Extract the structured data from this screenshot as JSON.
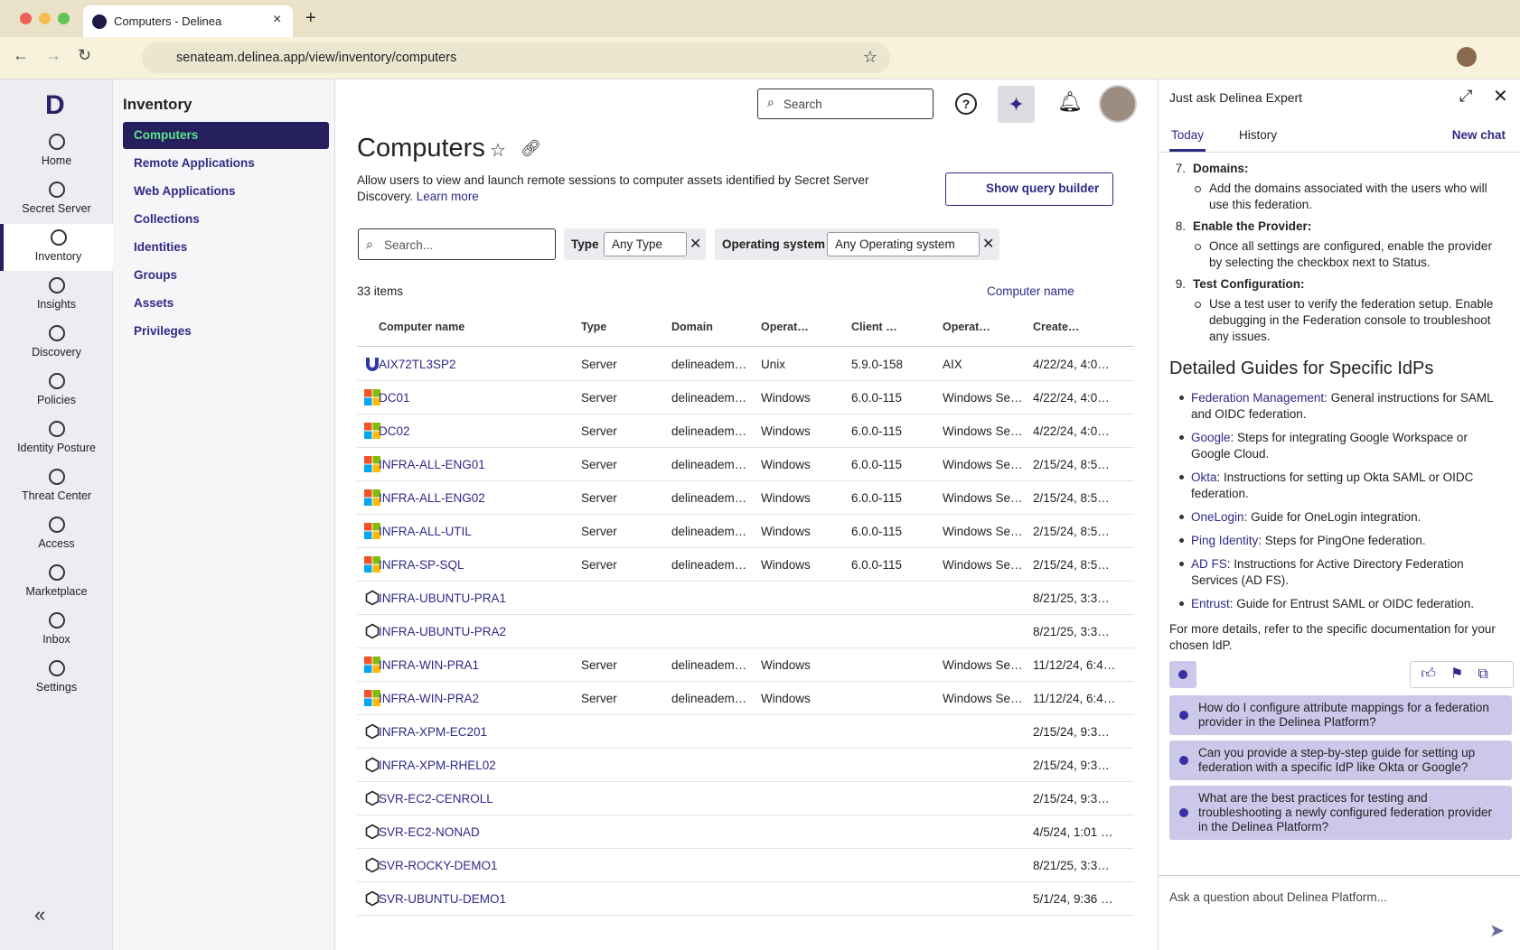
{
  "browser": {
    "tab_title": "Computers - Delinea",
    "url": "senateam.delinea.app/view/inventory/computers"
  },
  "rail": {
    "items": [
      "Home",
      "Secret Server",
      "Inventory",
      "Insights",
      "Discovery",
      "Policies",
      "Identity Posture",
      "Threat Center",
      "Access",
      "Marketplace",
      "Inbox",
      "Settings"
    ],
    "active": 2
  },
  "nav": {
    "title": "Inventory",
    "items": [
      "Computers",
      "Remote Applications",
      "Web Applications",
      "Collections",
      "Identities",
      "Groups",
      "Assets",
      "Privileges"
    ],
    "active": 0
  },
  "header": {
    "search": "Search"
  },
  "page": {
    "title": "Computers",
    "description": "Allow users to view and launch remote sessions to computer assets identified by Secret Server Discovery.",
    "learn_more": "Learn more",
    "query_builder": "Show query builder"
  },
  "filters": {
    "search": "Search...",
    "type_label": "Type",
    "type_value": "Any Type",
    "os_label": "Operating system",
    "os_value": "Any Operating system"
  },
  "table": {
    "count": "33 items",
    "sort": "Computer name",
    "columns": [
      "Computer name",
      "Type",
      "Domain",
      "Operat…",
      "Client …",
      "Operat…",
      "Create…"
    ],
    "rows": [
      [
        "AIX72TL3SP2",
        "Server",
        "delineadem…",
        "Unix",
        "5.9.0-158",
        "AIX",
        "4/22/24, 4:0…"
      ],
      [
        "DC01",
        "Server",
        "delineadem…",
        "Windows",
        "6.0.0-115",
        "Windows Se…",
        "4/22/24, 4:0…"
      ],
      [
        "DC02",
        "Server",
        "delineadem…",
        "Windows",
        "6.0.0-115",
        "Windows Se…",
        "4/22/24, 4:0…"
      ],
      [
        "INFRA-ALL-ENG01",
        "Server",
        "delineadem…",
        "Windows",
        "6.0.0-115",
        "Windows Se…",
        "2/15/24, 8:5…"
      ],
      [
        "INFRA-ALL-ENG02",
        "Server",
        "delineadem…",
        "Windows",
        "6.0.0-115",
        "Windows Se…",
        "2/15/24, 8:5…"
      ],
      [
        "INFRA-ALL-UTIL",
        "Server",
        "delineadem…",
        "Windows",
        "6.0.0-115",
        "Windows Se…",
        "2/15/24, 8:5…"
      ],
      [
        "INFRA-SP-SQL",
        "Server",
        "delineadem…",
        "Windows",
        "6.0.0-115",
        "Windows Se…",
        "2/15/24, 8:5…"
      ],
      [
        "INFRA-UBUNTU-PRA1",
        null,
        null,
        null,
        null,
        null,
        "8/21/25, 3:3…"
      ],
      [
        "INFRA-UBUNTU-PRA2",
        null,
        null,
        null,
        null,
        null,
        "8/21/25, 3:3…"
      ],
      [
        "INFRA-WIN-PRA1",
        "Server",
        "delineadem…",
        "Windows",
        null,
        "Windows Se…",
        "11/12/24, 6:4…"
      ],
      [
        "INFRA-WIN-PRA2",
        "Server",
        "delineadem…",
        "Windows",
        null,
        "Windows Se…",
        "11/12/24, 6:4…"
      ],
      [
        "INFRA-XPM-EC201",
        null,
        null,
        null,
        null,
        null,
        "2/15/24, 9:3…"
      ],
      [
        "INFRA-XPM-RHEL02",
        null,
        null,
        null,
        null,
        null,
        "2/15/24, 9:3…"
      ],
      [
        "SVR-EC2-CENROLL",
        null,
        null,
        null,
        null,
        null,
        "2/15/24, 9:3…"
      ],
      [
        "SVR-EC2-NONAD",
        null,
        null,
        null,
        null,
        null,
        "4/5/24, 1:01 …"
      ],
      [
        "SVR-ROCKY-DEMO1",
        null,
        null,
        null,
        null,
        null,
        "8/21/25, 3:3…"
      ],
      [
        "SVR-UBUNTU-DEMO1",
        null,
        null,
        null,
        null,
        null,
        "5/1/24, 9:36 …"
      ]
    ]
  },
  "chat": {
    "title": "Just ask Delinea Expert",
    "tabs": [
      "Today",
      "History"
    ],
    "active_tab": 0,
    "new_chat": "New chat",
    "steps": [
      {
        "number": "7.",
        "title": "Domains:",
        "text": "Add the domains associated with the users who will use this federation."
      },
      {
        "number": "8.",
        "title": "Enable the Provider:",
        "text": "Once all settings are configured, enable the provider by selecting the checkbox next to Status."
      },
      {
        "number": "9.",
        "title": "Test Configuration:",
        "text": "Use a test user to verify the federation setup. Enable debugging in the Federation console to troubleshoot any issues."
      }
    ],
    "guides_heading": "Detailed Guides for Specific IdPs",
    "guides": [
      {
        "name": "Federation Management",
        "text": ": General instructions for SAML and OIDC federation."
      },
      {
        "name": "Google",
        "text": ": Steps for integrating Google Workspace or Google Cloud."
      },
      {
        "name": "Okta",
        "text": ": Instructions for setting up Okta SAML or OIDC federation."
      },
      {
        "name": "OneLogin",
        "text": ": Guide for OneLogin integration."
      },
      {
        "name": "Ping Identity",
        "text": ": Steps for PingOne federation."
      },
      {
        "name": "AD FS",
        "text": ": Instructions for Active Directory Federation Services (AD FS)."
      },
      {
        "name": "Entrust",
        "text": ": Guide for Entrust SAML or OIDC federation."
      }
    ],
    "footer": "For more details, refer to the specific documentation for your chosen IdP.",
    "suggestions": [
      "How do I configure attribute mappings for a federation provider in the Delinea Platform?",
      "Can you provide a step-by-step guide for setting up federation with a specific IdP like Okta or Google?",
      "What are the best practices for testing and troubleshooting a newly configured federation provider in the Delinea Platform?"
    ],
    "input": "Ask a question about Delinea Platform..."
  }
}
